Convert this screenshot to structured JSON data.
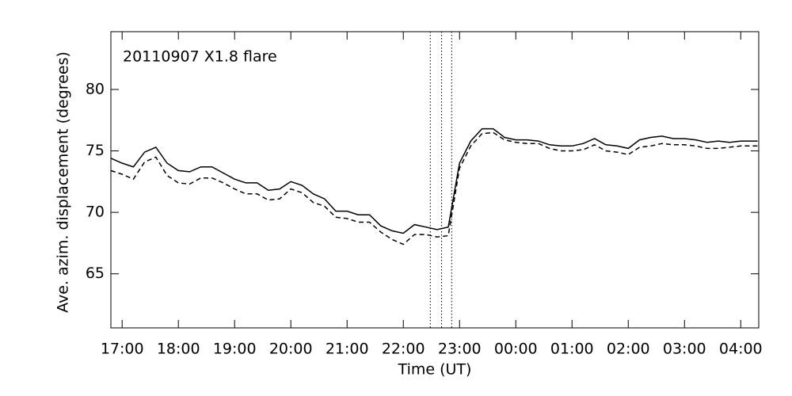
{
  "chart_data": {
    "type": "line",
    "annotation": "20110907 X1.8 flare",
    "xlabel": "Time (UT)",
    "ylabel": "Ave. azim. displacement (degrees)",
    "x": [
      16.8,
      17.0,
      17.2,
      17.4,
      17.6,
      17.8,
      18.0,
      18.2,
      18.4,
      18.6,
      18.8,
      19.0,
      19.2,
      19.4,
      19.6,
      19.8,
      20.0,
      20.2,
      20.4,
      20.6,
      20.8,
      21.0,
      21.2,
      21.4,
      21.6,
      21.8,
      22.0,
      22.2,
      22.4,
      22.6,
      22.8,
      23.0,
      23.2,
      23.4,
      23.6,
      23.8,
      24.0,
      24.2,
      24.4,
      24.6,
      24.8,
      25.0,
      25.2,
      25.4,
      25.6,
      25.8,
      26.0,
      26.2,
      26.4,
      26.6,
      26.8,
      27.0,
      27.2,
      27.4,
      27.6,
      27.8,
      28.0,
      28.2,
      28.3
    ],
    "series": [
      {
        "color": "#000000",
        "dash": "solid",
        "values": [
          74.4,
          74.0,
          73.7,
          74.9,
          75.3,
          74.0,
          73.4,
          73.3,
          73.7,
          73.7,
          73.2,
          72.7,
          72.4,
          72.4,
          71.8,
          71.9,
          72.5,
          72.2,
          71.5,
          71.1,
          70.1,
          70.1,
          69.8,
          69.8,
          68.9,
          68.5,
          68.3,
          69.0,
          68.8,
          68.6,
          68.8,
          74.0,
          75.8,
          76.8,
          76.8,
          76.1,
          75.9,
          75.9,
          75.8,
          75.5,
          75.4,
          75.4,
          75.6,
          76.0,
          75.5,
          75.4,
          75.2,
          75.9,
          76.1,
          76.2,
          76.0,
          76.0,
          75.9,
          75.7,
          75.8,
          75.7,
          75.8,
          75.8,
          75.8
        ]
      },
      {
        "color": "#000000",
        "dash": "dashed",
        "values": [
          73.4,
          73.1,
          72.7,
          74.1,
          74.5,
          73.0,
          72.4,
          72.3,
          72.8,
          72.8,
          72.4,
          71.9,
          71.5,
          71.5,
          71.0,
          71.1,
          71.9,
          71.6,
          70.8,
          70.5,
          69.6,
          69.5,
          69.2,
          69.2,
          68.4,
          67.8,
          67.4,
          68.2,
          68.2,
          68.0,
          68.1,
          73.6,
          75.4,
          76.4,
          76.5,
          75.9,
          75.7,
          75.6,
          75.6,
          75.2,
          75.0,
          75.0,
          75.1,
          75.5,
          75.0,
          74.9,
          74.7,
          75.3,
          75.4,
          75.6,
          75.5,
          75.5,
          75.4,
          75.2,
          75.2,
          75.3,
          75.4,
          75.4,
          75.4
        ]
      }
    ],
    "vlines": [
      22.48,
      22.68,
      22.86
    ],
    "xlim": [
      16.8,
      28.32
    ],
    "xticks": [
      {
        "value": 17,
        "label": "17:00"
      },
      {
        "value": 18,
        "label": "18:00"
      },
      {
        "value": 19,
        "label": "19:00"
      },
      {
        "value": 20,
        "label": "20:00"
      },
      {
        "value": 21,
        "label": "21:00"
      },
      {
        "value": 22,
        "label": "22:00"
      },
      {
        "value": 23,
        "label": "23:00"
      },
      {
        "value": 24,
        "label": "00:00"
      },
      {
        "value": 25,
        "label": "01:00"
      },
      {
        "value": 26,
        "label": "02:00"
      },
      {
        "value": 27,
        "label": "03:00"
      },
      {
        "value": 28,
        "label": "04:00"
      }
    ],
    "ylim": [
      60.6,
      84.7
    ],
    "yticks": [
      65,
      70,
      75,
      80
    ]
  }
}
